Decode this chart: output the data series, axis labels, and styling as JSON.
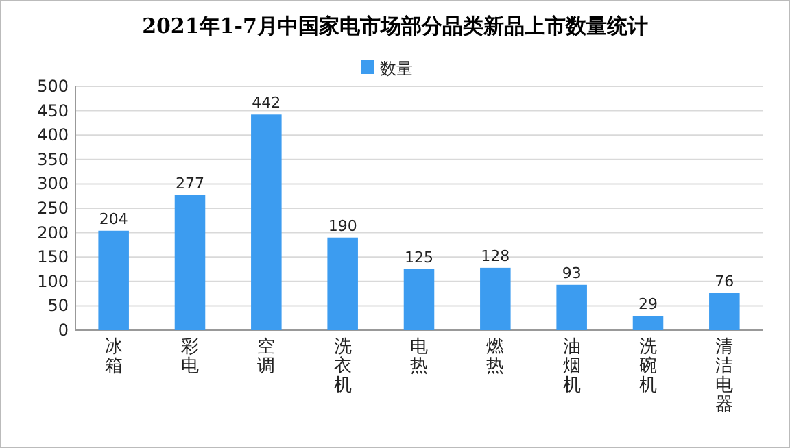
{
  "chart_data": {
    "type": "bar",
    "title": "2021年1-7月中国家电市场部分品类新品上市数量统计",
    "categories": [
      "冰箱",
      "彩电",
      "空调",
      "洗衣机",
      "电热",
      "燃热",
      "油烟机",
      "洗碗机",
      "清洁电器"
    ],
    "series": [
      {
        "name": "数量",
        "color": "#3c9cf0",
        "values": [
          204,
          277,
          442,
          190,
          125,
          128,
          93,
          29,
          76
        ]
      }
    ],
    "ylim": [
      0,
      500
    ],
    "yticks": [
      0,
      50,
      100,
      150,
      200,
      250,
      300,
      350,
      400,
      450,
      500
    ],
    "grid": "y",
    "legend": "top",
    "data_labels": true
  }
}
